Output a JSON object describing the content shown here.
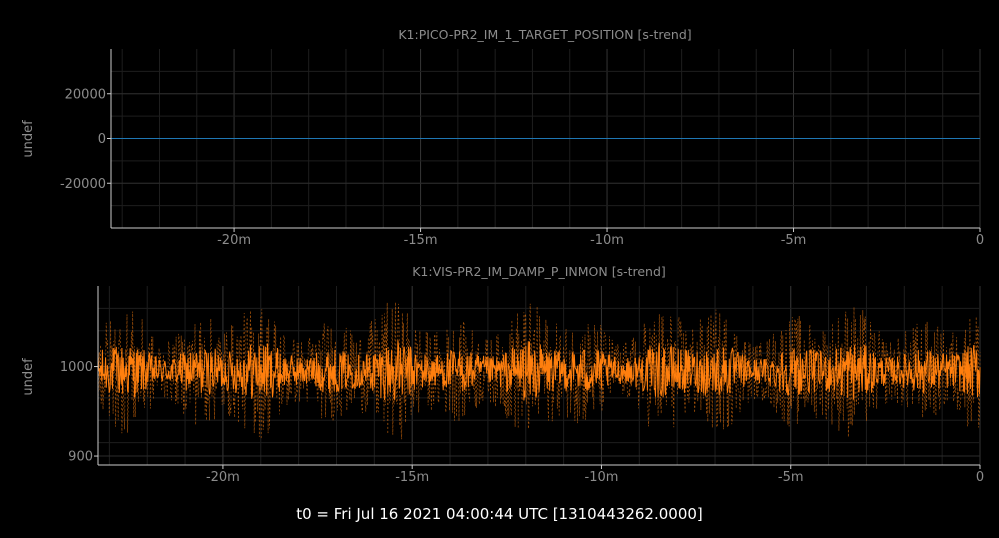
{
  "footer": {
    "t0_label": "t0 = Fri Jul 16 2021 04:00:44 UTC [1310443262.0000]"
  },
  "colors": {
    "background": "#000000",
    "axis": "#cccccc",
    "grid": "#1e1e1e",
    "text": "#8c8c8c",
    "panel1_line": "#1f77b4",
    "panel2_line": "#ff7f0e"
  },
  "chart_data": [
    {
      "type": "line",
      "title": "K1:PICO-PR2_IM_1_TARGET_POSITION [s-trend]",
      "xlabel": "",
      "ylabel": "undef",
      "x_unit": "minutes relative to t0",
      "xlim": [
        -23.3,
        0
      ],
      "ylim": [
        -40000,
        40000
      ],
      "x_ticks": [
        -20,
        -15,
        -10,
        -5,
        0
      ],
      "x_tick_labels": [
        "-20m",
        "-15m",
        "-10m",
        "-5m",
        "0"
      ],
      "y_ticks": [
        20000,
        0,
        -20000
      ],
      "y_tick_labels": [
        "20000",
        "0",
        "-20000"
      ],
      "grid": true,
      "series": [
        {
          "color": "#1f77b4",
          "x": [
            -23.3,
            0
          ],
          "y": [
            0,
            0
          ]
        }
      ]
    },
    {
      "type": "line",
      "title": "K1:VIS-PR2_IM_DAMP_P_INMON [s-trend]",
      "xlabel": "",
      "ylabel": "undef",
      "x_unit": "minutes relative to t0",
      "xlim": [
        -23.3,
        0
      ],
      "ylim": [
        890,
        1090
      ],
      "x_ticks": [
        -20,
        -15,
        -10,
        -5,
        0
      ],
      "x_tick_labels": [
        "-20m",
        "-15m",
        "-10m",
        "-5m",
        "0"
      ],
      "y_ticks": [
        1000,
        900
      ],
      "y_tick_labels": [
        "1000",
        "900"
      ],
      "grid": true,
      "series": [
        {
          "color": "#ff7f0e",
          "style": "solid",
          "description": "mean",
          "x_start": -23.3,
          "x_end": 0,
          "center": 995,
          "spread": [
            960,
            1030
          ]
        },
        {
          "color": "#ff7f0e",
          "style": "dashed",
          "description": "min/max envelope",
          "x_start": -23.3,
          "x_end": 0,
          "center": 995,
          "spread": [
            920,
            1080
          ]
        }
      ]
    }
  ]
}
